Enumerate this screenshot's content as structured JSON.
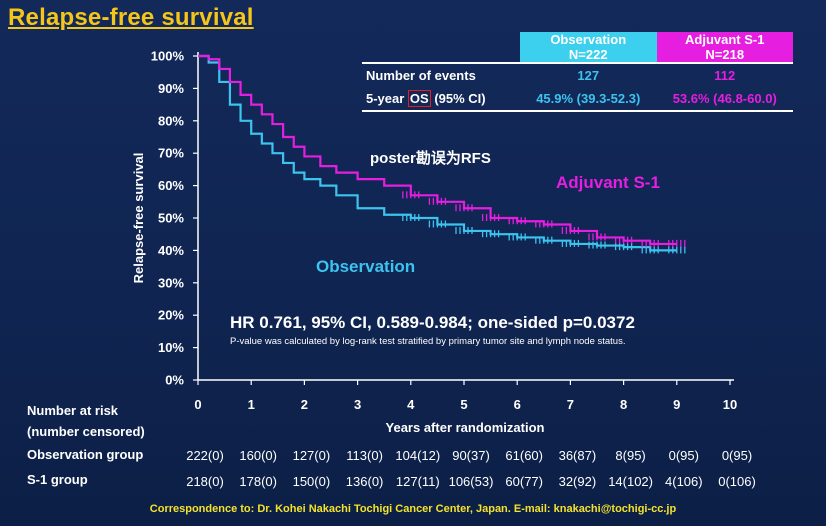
{
  "title": "Relapse-free survival",
  "table": {
    "obs_header_line1": "Observation",
    "obs_header_line2": "N=222",
    "s1_header_line1": "Adjuvant S-1",
    "s1_header_line2": "N=218",
    "row1_label": "Number of events",
    "row1_obs": "127",
    "row1_s1": "112",
    "row2_label_pre": "5-year ",
    "row2_label_os": "OS",
    "row2_label_post": " (95% CI)",
    "row2_obs": "45.9% (39.3-52.3)",
    "row2_s1": "53.6% (46.8-60.0)"
  },
  "note": "poster勘误为RFS",
  "hr_text": "HR 0.761, 95% CI, 0.589-0.984; one-sided p=0.0372",
  "p_note": "P-value was calculated by log-rank test stratified by primary tumor site and lymph node status.",
  "risk": {
    "header_line1": "Number at risk",
    "header_line2": "(number censored)",
    "obs_label": "Observation group",
    "s1_label": "S-1 group",
    "obs_values": [
      "222(0)",
      "160(0)",
      "127(0)",
      "113(0)",
      "104(12)",
      "90(37)",
      "61(60)",
      "36(87)",
      "8(95)",
      "0(95)",
      "0(95)"
    ],
    "s1_values": [
      "218(0)",
      "178(0)",
      "150(0)",
      "136(0)",
      "127(11)",
      "106(53)",
      "60(77)",
      "32(92)",
      "14(102)",
      "4(106)",
      "0(106)"
    ]
  },
  "correspondence": "Correspondence to: Dr. Kohei Nakachi Tochigi Cancer Center, Japan. E-mail: knakachi@tochigi-cc.jp",
  "colors": {
    "observation": "#3cc3ee",
    "s1": "#e51ee0",
    "title": "#f5c518",
    "background": "#0f2450"
  },
  "chart_data": {
    "type": "line",
    "title": "Relapse-free survival",
    "xlabel": "Years after randomization",
    "ylabel": "Relapse-free survival",
    "xlim": [
      0,
      10
    ],
    "ylim": [
      0,
      100
    ],
    "x_ticks": [
      "0",
      "1",
      "2",
      "3",
      "4",
      "5",
      "6",
      "7",
      "8",
      "9",
      "10"
    ],
    "y_ticks": [
      "0%",
      "10%",
      "20%",
      "30%",
      "40%",
      "50%",
      "60%",
      "70%",
      "80%",
      "90%",
      "100%"
    ],
    "series": [
      {
        "name": "Observation",
        "label": "Observation",
        "points": [
          [
            0,
            100
          ],
          [
            0.2,
            98
          ],
          [
            0.4,
            92
          ],
          [
            0.6,
            85
          ],
          [
            0.8,
            80
          ],
          [
            1.0,
            76
          ],
          [
            1.2,
            73
          ],
          [
            1.4,
            70
          ],
          [
            1.6,
            67
          ],
          [
            1.8,
            64
          ],
          [
            2.0,
            62
          ],
          [
            2.3,
            60
          ],
          [
            2.6,
            57
          ],
          [
            3.0,
            53
          ],
          [
            3.5,
            51
          ],
          [
            4.0,
            50
          ],
          [
            4.5,
            48
          ],
          [
            5.0,
            46
          ],
          [
            5.5,
            45
          ],
          [
            6.0,
            44
          ],
          [
            6.5,
            43
          ],
          [
            7.0,
            42
          ],
          [
            7.5,
            41.5
          ],
          [
            8.0,
            41
          ],
          [
            8.5,
            40
          ],
          [
            9.0,
            40
          ]
        ]
      },
      {
        "name": "Adjuvant S-1",
        "label": "Adjuvant S-1",
        "points": [
          [
            0,
            100
          ],
          [
            0.2,
            99
          ],
          [
            0.4,
            96
          ],
          [
            0.6,
            92
          ],
          [
            0.8,
            88
          ],
          [
            1.0,
            85
          ],
          [
            1.2,
            82
          ],
          [
            1.4,
            79
          ],
          [
            1.6,
            75
          ],
          [
            1.8,
            72
          ],
          [
            2.0,
            69
          ],
          [
            2.3,
            66
          ],
          [
            2.6,
            64
          ],
          [
            3.0,
            62
          ],
          [
            3.5,
            60
          ],
          [
            4.0,
            57
          ],
          [
            4.5,
            55
          ],
          [
            5.0,
            53
          ],
          [
            5.5,
            50
          ],
          [
            6.0,
            49
          ],
          [
            6.5,
            48
          ],
          [
            7.0,
            46
          ],
          [
            7.5,
            44
          ],
          [
            8.0,
            43
          ],
          [
            8.5,
            42
          ],
          [
            9.0,
            42
          ]
        ]
      }
    ]
  }
}
